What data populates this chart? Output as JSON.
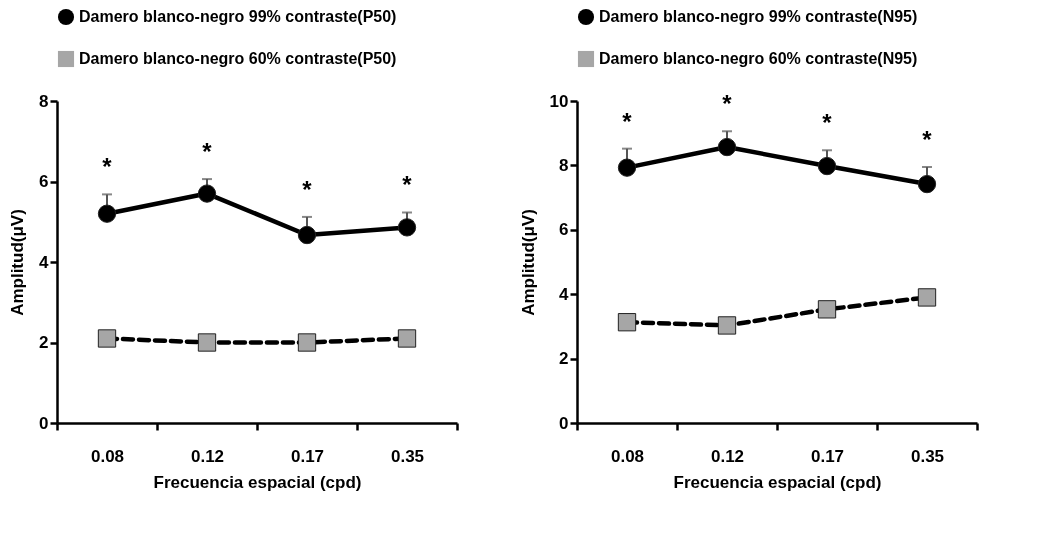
{
  "chart_data": [
    {
      "type": "line",
      "xlabel": "Frecuencia espacial (cpd)",
      "ylabel": "Amplitud(μV)",
      "categories": [
        "0.08",
        "0.12",
        "0.17",
        "0.35"
      ],
      "ylim": [
        0,
        8
      ],
      "yticks": [
        0,
        2,
        4,
        6,
        8
      ],
      "grid": false,
      "legend": "top left",
      "series": [
        {
          "name": "Damero blanco-negro 99%  contraste(P50)",
          "color": "#000000",
          "marker": "circle",
          "line_style": "solid",
          "values": [
            5.2,
            5.7,
            4.67,
            4.86
          ],
          "errors": [
            [
              5.2,
              5.68
            ],
            [
              5.7,
              6.06
            ],
            [
              4.67,
              5.12
            ],
            [
              4.86,
              5.23
            ]
          ]
        },
        {
          "name": "Damero blanco-negro 60%  contraste(P50)",
          "color": "#a6a6a6",
          "marker": "square",
          "line_style": "dashed",
          "values": [
            2.1,
            2.0,
            2.0,
            2.1
          ]
        }
      ],
      "annotations": [
        "*",
        "*",
        "*",
        "*"
      ]
    },
    {
      "type": "line",
      "xlabel": "Frecuencia espacial (cpd)",
      "ylabel": "Amplitud(μV)",
      "categories": [
        "0.08",
        "0.12",
        "0.17",
        "0.35"
      ],
      "ylim": [
        0,
        10
      ],
      "yticks": [
        0,
        2,
        4,
        6,
        8,
        10
      ],
      "grid": false,
      "legend": "top left",
      "series": [
        {
          "name": "Damero blanco-negro 99%  contraste(N95)",
          "color": "#000000",
          "marker": "circle",
          "line_style": "solid",
          "values": [
            7.93,
            8.57,
            7.98,
            7.42
          ],
          "errors": [
            [
              7.93,
              8.52
            ],
            [
              8.57,
              9.06
            ],
            [
              7.98,
              8.47
            ],
            [
              7.42,
              7.95
            ]
          ]
        },
        {
          "name": "Damero blanco-negro 60%  contraste(N95)",
          "color": "#a6a6a6",
          "marker": "square",
          "line_style": "dashed",
          "values": [
            3.13,
            3.03,
            3.53,
            3.9
          ]
        }
      ],
      "annotations": [
        "*",
        "*",
        "*",
        "*"
      ]
    }
  ]
}
